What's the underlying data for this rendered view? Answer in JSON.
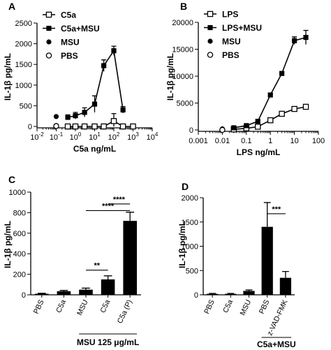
{
  "chart_data": [
    {
      "panel": "A",
      "type": "line",
      "xscale": "log",
      "xlabel": "C5a ng/mL",
      "ylabel": "IL-1β pg/mL",
      "xlim": [
        0.01,
        10000
      ],
      "ylim": [
        0,
        2500
      ],
      "xticks": [
        {
          "v": 0.01,
          "m": "10",
          "e": "-2"
        },
        {
          "v": 0.1,
          "m": "10",
          "e": "-1"
        },
        {
          "v": 1,
          "m": "10",
          "e": "0"
        },
        {
          "v": 10,
          "m": "10",
          "e": "1"
        },
        {
          "v": 100,
          "m": "10",
          "e": "2"
        },
        {
          "v": 1000,
          "m": "10",
          "e": "3"
        },
        {
          "v": 10000,
          "m": "10",
          "e": "4"
        }
      ],
      "yticks": [
        0,
        500,
        1000,
        1500,
        2000,
        2500
      ],
      "ytick_labels": [
        "0",
        "500",
        "1000",
        "1500",
        "2000",
        "2500"
      ],
      "legend_position": "top-left",
      "series": [
        {
          "name": "C5a",
          "marker": "open-square",
          "x": [
            0.4,
            1,
            3,
            10,
            30,
            100,
            300,
            1000
          ],
          "y": [
            0,
            0,
            0,
            0,
            0,
            130,
            0,
            0
          ],
          "err": [
            25,
            25,
            25,
            25,
            25,
            180,
            25,
            25
          ]
        },
        {
          "name": "C5a+MSU",
          "marker": "filled-square",
          "x": [
            0.4,
            1,
            3,
            10,
            30,
            100,
            300
          ],
          "y": [
            220,
            260,
            340,
            540,
            1470,
            1830,
            400
          ],
          "err": [
            60,
            80,
            110,
            200,
            140,
            110,
            80
          ]
        },
        {
          "name": "MSU",
          "marker": "filled-circle",
          "x": [
            0.1
          ],
          "y": [
            240
          ],
          "err": [
            0
          ]
        },
        {
          "name": "PBS",
          "marker": "open-circle",
          "x": [
            0.1
          ],
          "y": [
            10
          ],
          "err": [
            0
          ]
        }
      ]
    },
    {
      "panel": "B",
      "type": "line",
      "xscale": "log",
      "xlabel": "LPS ng/mL",
      "ylabel": "IL-1β pg/mL",
      "xlim": [
        0.001,
        100
      ],
      "ylim": [
        0,
        20000
      ],
      "xticks": [
        0.001,
        0.01,
        0.1,
        1,
        10,
        100
      ],
      "xtick_labels": [
        "0.001",
        "0.01",
        "0.1",
        "1",
        "10",
        "100"
      ],
      "yticks": [
        0,
        5000,
        10000,
        15000,
        20000
      ],
      "ytick_labels": [
        "0",
        "5000",
        "10000",
        "15000",
        "20000"
      ],
      "legend_position": "top-left",
      "series": [
        {
          "name": "LPS",
          "marker": "open-square",
          "x": [
            0.03,
            0.1,
            0.3,
            1,
            3,
            10,
            30
          ],
          "y": [
            100,
            300,
            600,
            1800,
            3000,
            3900,
            4300
          ],
          "err": [
            0,
            0,
            0,
            150,
            200,
            250,
            300
          ]
        },
        {
          "name": "LPS+MSU",
          "marker": "filled-square",
          "x": [
            0.03,
            0.1,
            0.3,
            1,
            3,
            10,
            30
          ],
          "y": [
            400,
            800,
            1600,
            6500,
            10500,
            16600,
            17200
          ],
          "err": [
            0,
            0,
            200,
            200,
            300,
            700,
            1300
          ]
        },
        {
          "name": "MSU",
          "marker": "filled-circle",
          "x": [
            0.01
          ],
          "y": [
            200
          ],
          "err": [
            0
          ]
        },
        {
          "name": "PBS",
          "marker": "open-circle",
          "x": [
            0.01
          ],
          "y": [
            0
          ],
          "err": [
            0
          ]
        }
      ]
    },
    {
      "panel": "C",
      "type": "bar",
      "ylabel": "IL-1β pg/mL",
      "ylim": [
        0,
        1000
      ],
      "yticks": [
        0,
        200,
        400,
        600,
        800,
        1000
      ],
      "ytick_labels": [
        "0",
        "200",
        "400",
        "600",
        "800",
        "1000"
      ],
      "categories": [
        "PBS",
        "C5a",
        "MSU",
        "C5a",
        "C5a (P)"
      ],
      "values": [
        10,
        35,
        50,
        150,
        720
      ],
      "errors": [
        5,
        8,
        15,
        35,
        85
      ],
      "group_label": "MSU 125 μg/mL",
      "significance": [
        {
          "from": 3,
          "to": 4,
          "label": "****",
          "y": 885
        },
        {
          "from": 2,
          "to": 4,
          "label": "****",
          "y": 820
        },
        {
          "from": 2,
          "to": 3,
          "label": "**",
          "y": 240
        }
      ]
    },
    {
      "panel": "D",
      "type": "bar",
      "ylabel": "IL-1β pg/mL",
      "ylim": [
        0,
        2000
      ],
      "yticks": [
        0,
        500,
        1000,
        1500,
        2000
      ],
      "ytick_labels": [
        "0",
        "500",
        "1000",
        "1500",
        "2000"
      ],
      "categories": [
        "PBS",
        "C5a",
        "MSU",
        "PBS",
        "z-VAD-FMK"
      ],
      "values": [
        20,
        20,
        80,
        1400,
        350
      ],
      "errors": [
        8,
        8,
        20,
        500,
        130
      ],
      "group_label": "C5a+MSU",
      "significance": [
        {
          "from": 3,
          "to": 4,
          "label": "***",
          "y": 1670
        }
      ]
    }
  ]
}
